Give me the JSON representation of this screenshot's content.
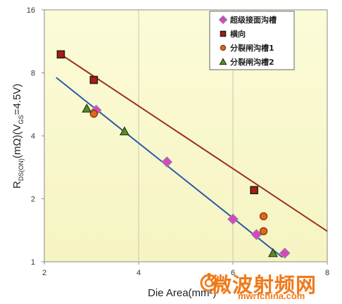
{
  "chart_data": {
    "type": "scatter",
    "title": "",
    "xlabel": "Die Area(mm²)",
    "ylabel_main": "R",
    "ylabel_sub": "DS(ON)",
    "ylabel_rest": "(mΩ)(V",
    "ylabel_sub2": "GS",
    "ylabel_end": "=4.5V)",
    "x_scale": "linear",
    "y_scale": "log2",
    "xlim": [
      2,
      8
    ],
    "ylim": [
      1,
      16
    ],
    "x_ticks": [
      "2",
      "4",
      "6",
      "8"
    ],
    "y_ticks": [
      "1",
      "2",
      "4",
      "8",
      "16"
    ],
    "grid": "x",
    "legend_position": "top-right",
    "series": [
      {
        "name": "超级接面沟槽",
        "marker": "diamond",
        "color": "#e040c8",
        "edge": "#8a8a8a",
        "x": [
          3.1,
          4.6,
          6.0,
          6.5,
          7.1
        ],
        "y": [
          5.3,
          3.0,
          1.6,
          1.35,
          1.1
        ]
      },
      {
        "name": "横向",
        "marker": "square",
        "color": "#b01a10",
        "edge": "#222222",
        "x": [
          2.35,
          3.05,
          6.45
        ],
        "y": [
          9.8,
          7.4,
          2.2
        ]
      },
      {
        "name": "分裂闸沟槽1",
        "marker": "circle",
        "color": "#e06818",
        "edge": "#8a3a10",
        "x": [
          3.05,
          6.65,
          6.65
        ],
        "y": [
          5.1,
          1.65,
          1.4
        ]
      },
      {
        "name": "分裂闸沟槽2",
        "marker": "triangle",
        "color": "#5a8a28",
        "edge": "#2a3a10",
        "x": [
          2.9,
          3.7,
          6.85
        ],
        "y": [
          5.4,
          4.2,
          1.1
        ]
      }
    ],
    "trendlines": [
      {
        "name": "red-trendline",
        "color": "#9a3020",
        "x": [
          2.35,
          8.0
        ],
        "y": [
          9.8,
          1.4
        ]
      },
      {
        "name": "blue-trendline",
        "color": "#2a5aa8",
        "x": [
          2.25,
          7.05
        ],
        "y": [
          7.6,
          1.05
        ]
      }
    ]
  },
  "watermark": {
    "main": "微波射频网",
    "sub": "mwrfchina.com"
  }
}
